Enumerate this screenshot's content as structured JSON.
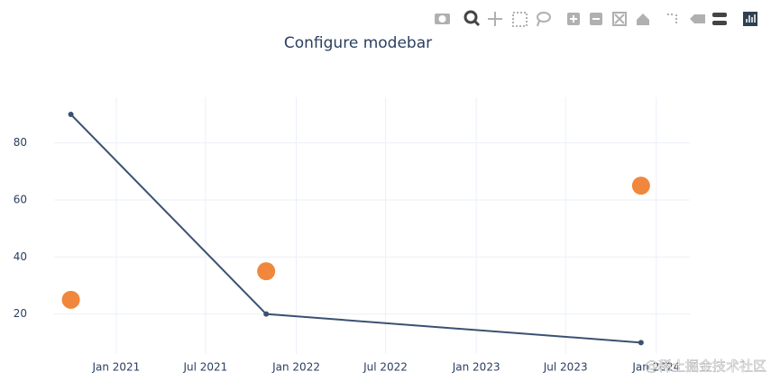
{
  "chart_data": {
    "type": "line",
    "title": "Configure modebar",
    "x": [
      "2020-10",
      "2021-11",
      "2023-12"
    ],
    "series": [
      {
        "color": "#3b5172",
        "values": [
          90,
          20,
          10
        ],
        "mode": "lines+markers"
      },
      {
        "color": "#f0873c",
        "values": [
          25,
          35,
          65
        ],
        "mode": "markers"
      }
    ],
    "xlim": [
      "2020-08-28",
      "2024-03-09"
    ],
    "xticks": [
      {
        "value": "2021-01",
        "label": "Jan 2021"
      },
      {
        "value": "2021-07",
        "label": "Jul 2021"
      },
      {
        "value": "2022-01",
        "label": "Jan 2022"
      },
      {
        "value": "2022-07",
        "label": "Jul 2022"
      },
      {
        "value": "2023-01",
        "label": "Jan 2023"
      },
      {
        "value": "2023-07",
        "label": "Jul 2023"
      },
      {
        "value": "2024-01",
        "label": "Jan 2024"
      }
    ],
    "ylim": [
      6,
      96
    ],
    "yticks": [
      20,
      40,
      60,
      80
    ],
    "grid": true
  },
  "watermark": "@稀土掘金技术社区"
}
